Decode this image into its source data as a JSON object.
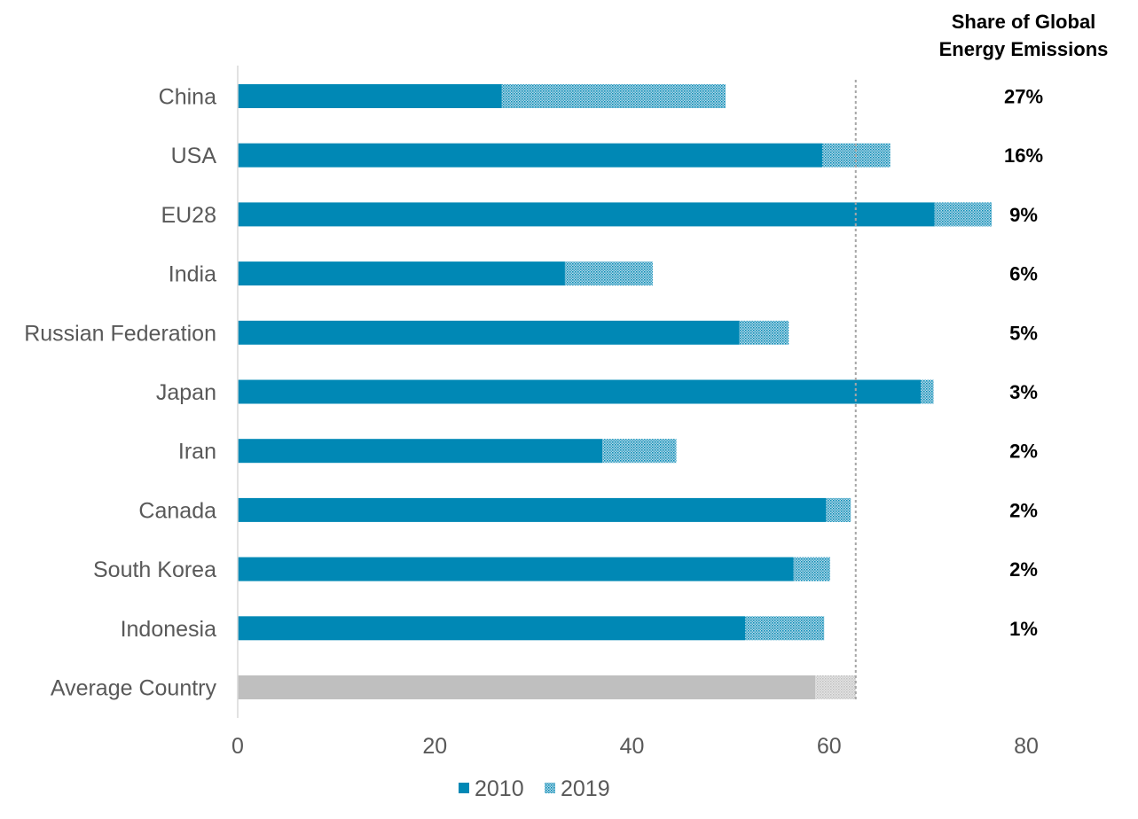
{
  "chart_data": {
    "type": "bar",
    "orientation": "horizontal",
    "stacked": true,
    "categories": [
      "China",
      "USA",
      "EU28",
      "India",
      "Russian Federation",
      "Japan",
      "Iran",
      "Canada",
      "South Korea",
      "Indonesia",
      "Average Country"
    ],
    "series": [
      {
        "name": "2010",
        "values": [
          26.8,
          59.3,
          70.7,
          33.2,
          50.9,
          69.3,
          37.0,
          59.7,
          56.4,
          51.5,
          58.6
        ],
        "color": "#0088b5"
      },
      {
        "name": "2019",
        "values": [
          22.7,
          6.9,
          5.8,
          8.9,
          5.0,
          1.3,
          7.5,
          2.5,
          3.7,
          8.0,
          4.1
        ],
        "color": "#0088b5",
        "pattern": "dotted"
      }
    ],
    "special_category_colors": {
      "Average Country": {
        "2010": "#bfbfbf",
        "2019": "#d0d0d0"
      }
    },
    "share_title": [
      "Share of Global",
      "Energy Emissions"
    ],
    "share_labels": [
      "27%",
      "16%",
      "9%",
      "6%",
      "5%",
      "3%",
      "2%",
      "2%",
      "2%",
      "1%",
      ""
    ],
    "reference_line": {
      "value": 62.7,
      "style": "dotted",
      "color": "#a6a6a6"
    },
    "x_ticks": [
      "0",
      "20",
      "40",
      "60",
      "80"
    ],
    "xlim": [
      0,
      80
    ],
    "legend_placement": "bottom",
    "grid": false
  }
}
